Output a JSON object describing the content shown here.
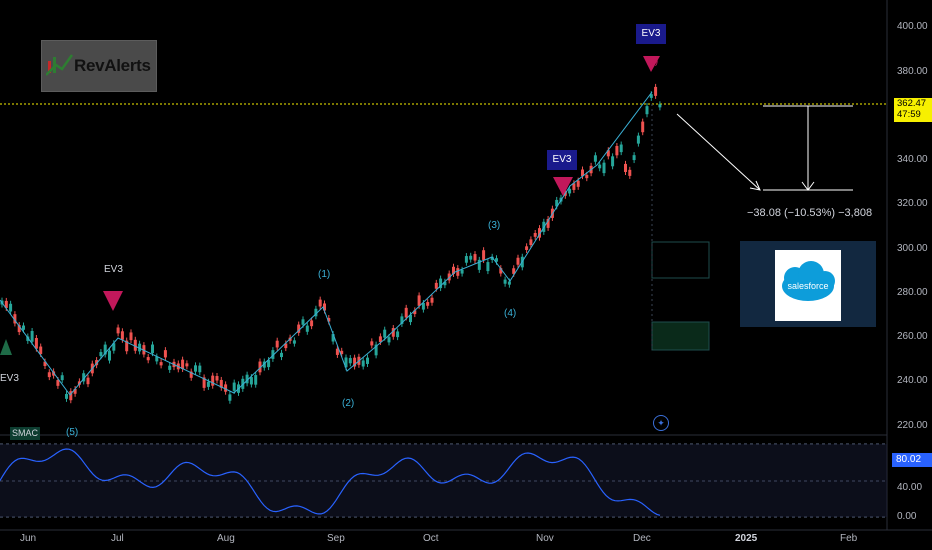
{
  "logo": {
    "text": "RevAlerts"
  },
  "price_axis": {
    "ticks": [
      "400.00",
      "380.00",
      "360.00",
      "340.00",
      "320.00",
      "300.00",
      "280.00",
      "260.00",
      "240.00",
      "220.00"
    ]
  },
  "current_price": {
    "value": "362.47",
    "countdown": "47:59",
    "color": "#f7f000"
  },
  "time_axis": {
    "labels": [
      "Jun",
      "Jul",
      "Aug",
      "Sep",
      "Oct",
      "Nov",
      "Dec",
      "2025",
      "Feb"
    ]
  },
  "oscillator": {
    "ticks": [
      "40.00",
      "0.00"
    ],
    "current": "80.02",
    "line_color": "#2962ff"
  },
  "measure": {
    "text": "−38.08 (−10.53%) −3,808"
  },
  "salesforce": {
    "text": "salesforce"
  },
  "tags": {
    "ev3_top": "EV3",
    "ev3_mid": "EV3",
    "ev3_left": "EV3",
    "ev3_far_left": "EV3",
    "smac": "SMAC"
  },
  "waves": {
    "w1": "(1)",
    "w2": "(2)",
    "w3": "(3)",
    "w4": "(4)",
    "w5a": "(5)",
    "w5b": "(5)"
  },
  "colors": {
    "up": "#26a69a",
    "down": "#ef5350",
    "wave_line": "#3ab0d6",
    "bg": "#000000"
  }
}
